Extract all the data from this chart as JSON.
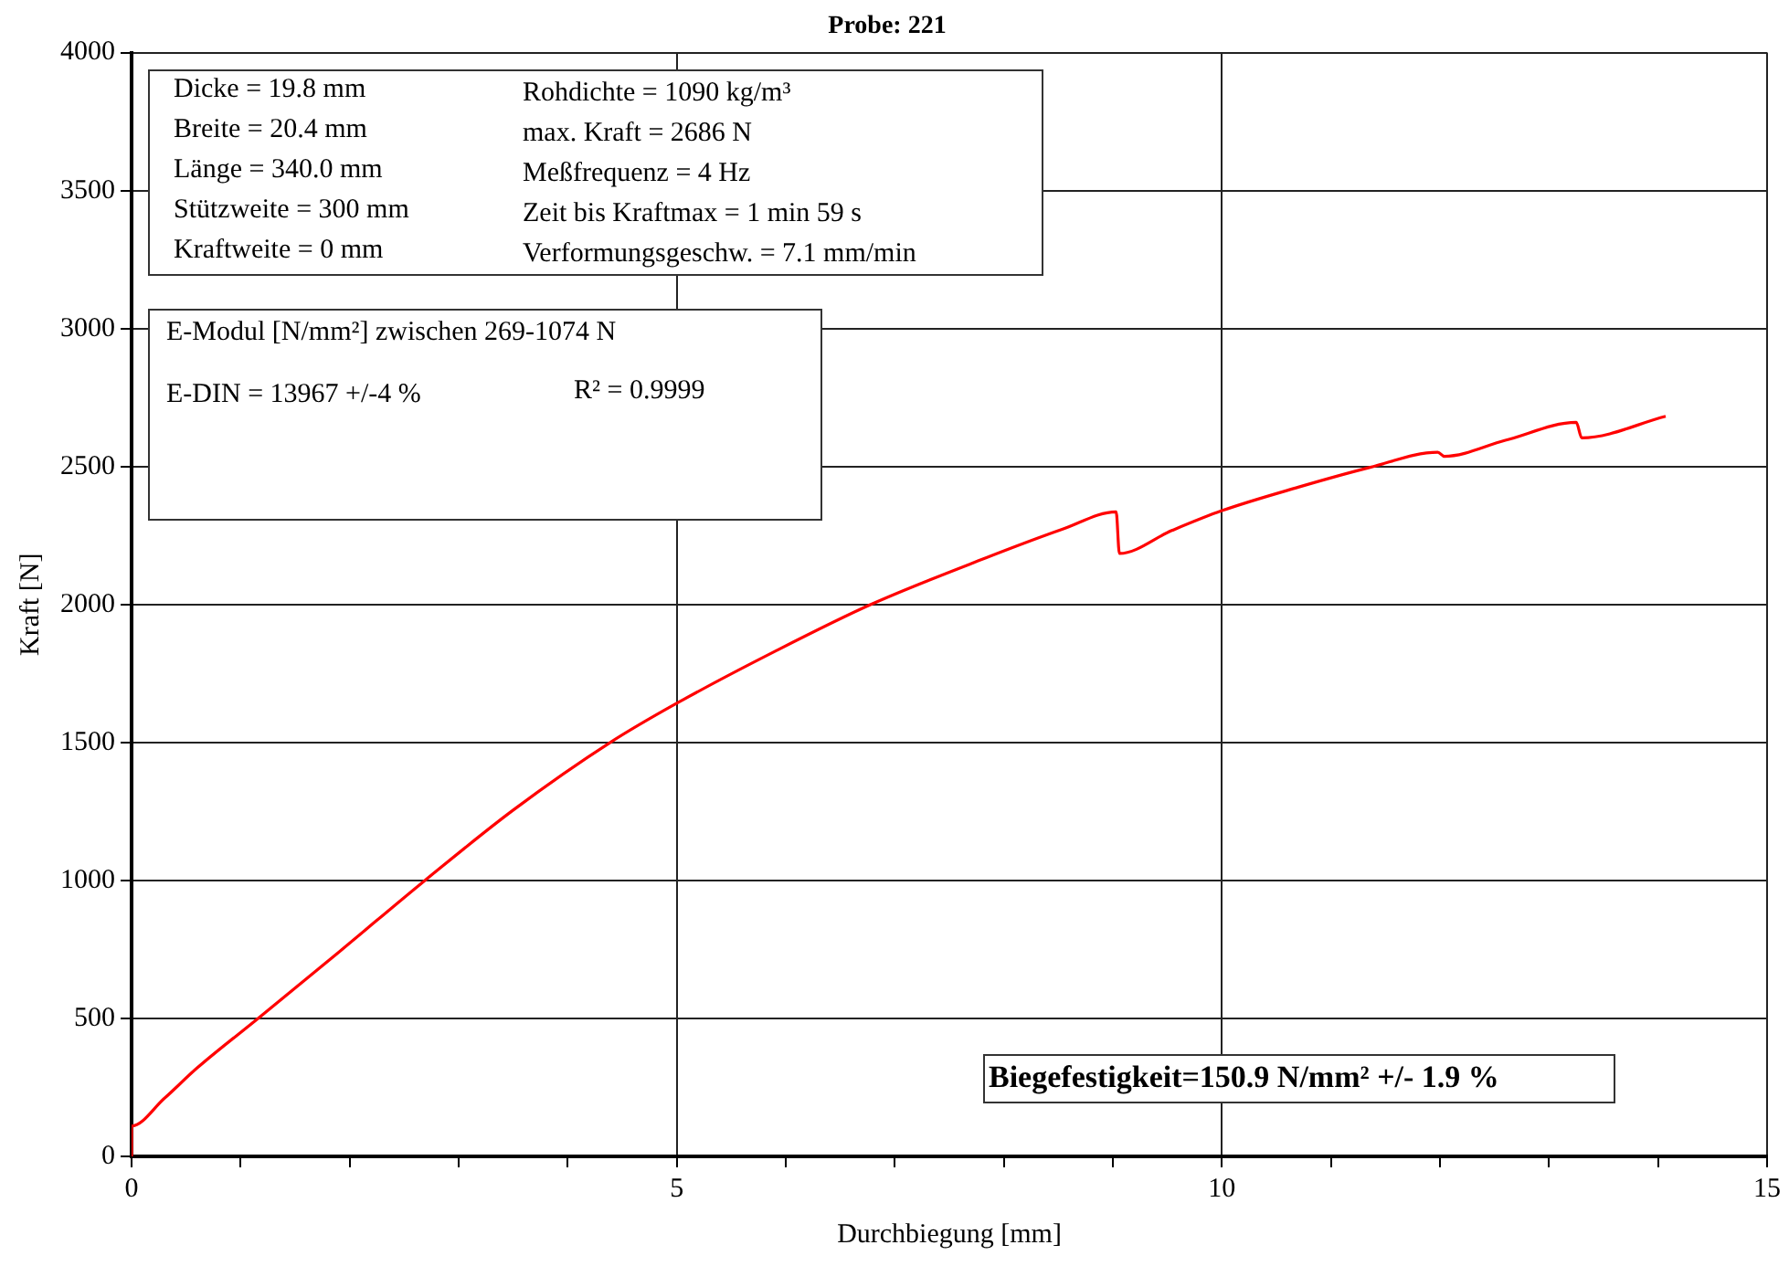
{
  "chart_data": {
    "type": "line",
    "title": "Probe: 221",
    "xlabel": "Durchbiegung [mm]",
    "ylabel": "Kraft [N]",
    "xlim": [
      0,
      15
    ],
    "ylim": [
      0,
      4000
    ],
    "xticks": [
      0,
      {
        "value": 1,
        "label": null
      },
      {
        "value": 2,
        "label": null
      },
      {
        "value": 3,
        "label": null
      },
      {
        "value": 4,
        "label": null
      },
      5,
      {
        "value": 6,
        "label": null
      },
      {
        "value": 7,
        "label": null
      },
      {
        "value": 8,
        "label": null
      },
      {
        "value": 9,
        "label": null
      },
      10,
      {
        "value": 11,
        "label": null
      },
      {
        "value": 12,
        "label": null
      },
      {
        "value": 13,
        "label": null
      },
      {
        "value": 14,
        "label": null
      },
      15
    ],
    "yticks": [
      0,
      500,
      1000,
      1500,
      2000,
      2500,
      3000,
      3500,
      4000
    ],
    "grid": true,
    "legend": false,
    "marker": "none",
    "line_style": "solid",
    "series": [
      {
        "color": "#ff0000",
        "x": [
          0,
          0,
          0.3,
          0.6,
          1.16,
          1.9,
          2.69,
          3.5,
          4.39,
          5.0,
          5.9,
          6.78,
          7.83,
          8.54,
          9.03,
          9.06,
          9.54,
          10.0,
          10.7,
          11.36,
          11.98,
          12.04,
          12.6,
          13.25,
          13.3,
          14.07
        ],
        "values": [
          0,
          110,
          210,
          320,
          500,
          740,
          1000,
          1255,
          1500,
          1642,
          1830,
          2000,
          2168,
          2273,
          2336,
          2185,
          2268,
          2340,
          2425,
          2497,
          2552,
          2537,
          2595,
          2660,
          2604,
          2682
        ]
      }
    ],
    "annotations": [
      "Dicke = 19.8 mm",
      "Breite = 20.4 mm",
      "Länge = 340.0 mm",
      "Stützweite = 300 mm",
      "Kraftweite = 0 mm",
      "Rohdichte = 1090 kg/m³",
      "max. Kraft = 2686 N",
      "Meßfrequenz = 4 Hz",
      "Zeit bis Kraftmax = 1 min 59 s",
      "Verformungsgeschw. = 7.1 mm/min",
      "E-Modul [N/mm²] zwischen 269-1074 N",
      "E-DIN = 13967 +/-4 %",
      "R² = 0.9999",
      "Biegefestigkeit=150.9 N/mm² +/- 1.9 %"
    ]
  }
}
